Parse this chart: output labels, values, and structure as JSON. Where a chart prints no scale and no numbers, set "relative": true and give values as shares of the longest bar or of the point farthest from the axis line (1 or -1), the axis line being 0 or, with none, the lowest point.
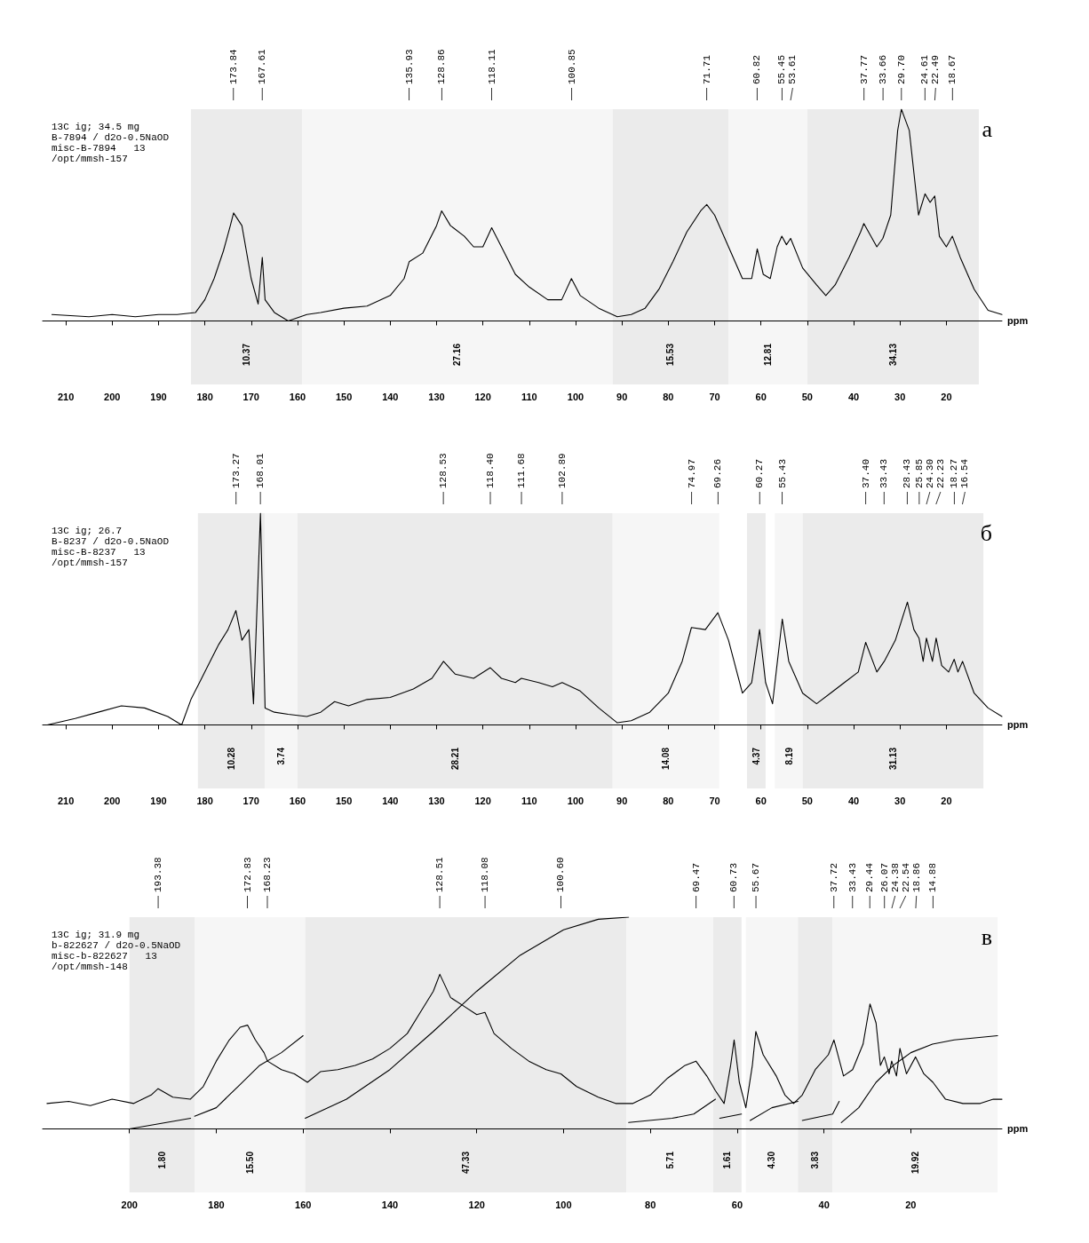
{
  "chart_data": [
    {
      "type": "line",
      "relative": true,
      "title": "а",
      "xlabel": "ppm",
      "xlim": [
        215,
        8
      ],
      "xticks": [
        210,
        200,
        190,
        180,
        170,
        160,
        150,
        140,
        130,
        120,
        110,
        100,
        90,
        80,
        70,
        60,
        50,
        40,
        30,
        20
      ],
      "annotations": [
        "13C ig; 34.5 mg",
        "B-7894 / d2o-0.5NaOD",
        "misc-B-7894   13",
        "/opt/mmsh-157",
        {
          "text": "173.84",
          "x": 173.84
        },
        {
          "text": "167.61",
          "x": 167.61
        },
        {
          "text": "135.93",
          "x": 135.93
        },
        {
          "text": "128.86",
          "x": 128.86
        },
        {
          "text": "118.11",
          "x": 118.11
        },
        {
          "text": "100.85",
          "x": 100.85
        },
        {
          "text": "71.71",
          "x": 71.71
        },
        {
          "text": "60.82",
          "x": 60.82
        },
        {
          "text": "55.45",
          "x": 55.45
        },
        {
          "text": "53.61",
          "x": 53.61
        },
        {
          "text": "37.77",
          "x": 37.77
        },
        {
          "text": "33.66",
          "x": 33.66
        },
        {
          "text": "29.70",
          "x": 29.7
        },
        {
          "text": "24.61",
          "x": 24.61
        },
        {
          "text": "22.49",
          "x": 22.49
        },
        {
          "text": "18.67",
          "x": 18.67
        }
      ],
      "bands": [
        {
          "axis": "x",
          "from": 183,
          "to": 159,
          "label": "10.37"
        },
        {
          "axis": "x",
          "from": 159,
          "to": 92,
          "label": "27.16"
        },
        {
          "axis": "x",
          "from": 92,
          "to": 67,
          "label": "15.53"
        },
        {
          "axis": "x",
          "from": 67,
          "to": 50,
          "label": "12.81"
        },
        {
          "axis": "x",
          "from": 50,
          "to": 13,
          "label": "34.13"
        }
      ],
      "series": [
        {
          "color": "#000000",
          "x": [
            213,
            205,
            200,
            195,
            190,
            186,
            182,
            180,
            178,
            176,
            174.5,
            173.8,
            172,
            170,
            168.5,
            167.6,
            167,
            165,
            162,
            158,
            155,
            150,
            145,
            140,
            137,
            135.9,
            133,
            130,
            128.9,
            127,
            124,
            122,
            120,
            118.1,
            116,
            113,
            110,
            106,
            103,
            100.9,
            99,
            95,
            91,
            88,
            85,
            82,
            79,
            76,
            73,
            71.7,
            70,
            67,
            64,
            62,
            60.8,
            59.5,
            58,
            56.5,
            55.5,
            54.5,
            53.6,
            51,
            48,
            46,
            44,
            41,
            38.5,
            37.8,
            35,
            33.7,
            32,
            30.5,
            29.7,
            28,
            26,
            24.6,
            23.5,
            22.5,
            21.5,
            20,
            18.7,
            17,
            14,
            11,
            8
          ],
          "values": [
            0.03,
            0.02,
            0.03,
            0.02,
            0.03,
            0.03,
            0.04,
            0.1,
            0.2,
            0.33,
            0.45,
            0.51,
            0.45,
            0.2,
            0.08,
            0.3,
            0.1,
            0.04,
            0.0,
            0.03,
            0.04,
            0.06,
            0.07,
            0.12,
            0.2,
            0.28,
            0.32,
            0.45,
            0.52,
            0.45,
            0.4,
            0.35,
            0.35,
            0.44,
            0.35,
            0.22,
            0.16,
            0.1,
            0.1,
            0.2,
            0.12,
            0.06,
            0.02,
            0.03,
            0.06,
            0.15,
            0.28,
            0.42,
            0.52,
            0.55,
            0.5,
            0.35,
            0.2,
            0.2,
            0.34,
            0.22,
            0.2,
            0.35,
            0.4,
            0.36,
            0.39,
            0.25,
            0.17,
            0.12,
            0.17,
            0.3,
            0.42,
            0.46,
            0.35,
            0.39,
            0.5,
            0.9,
            1.0,
            0.9,
            0.5,
            0.6,
            0.56,
            0.59,
            0.4,
            0.35,
            0.4,
            0.3,
            0.15,
            0.05,
            0.03
          ]
        }
      ]
    },
    {
      "type": "line",
      "relative": true,
      "title": "б",
      "xlabel": "ppm",
      "xlim": [
        215,
        8
      ],
      "xticks": [
        210,
        200,
        190,
        180,
        170,
        160,
        150,
        140,
        130,
        120,
        110,
        100,
        90,
        80,
        70,
        60,
        50,
        40,
        30,
        20
      ],
      "annotations": [
        "13C ig; 26.7",
        "B-8237 / d2o-0.5NaOD",
        "misc-B-8237   13",
        "/opt/mmsh-157",
        {
          "text": "173.27",
          "x": 173.27
        },
        {
          "text": "168.01",
          "x": 168.01
        },
        {
          "text": "128.53",
          "x": 128.53
        },
        {
          "text": "118.40",
          "x": 118.4
        },
        {
          "text": "111.68",
          "x": 111.68
        },
        {
          "text": "102.89",
          "x": 102.89
        },
        {
          "text": "74.97",
          "x": 74.97
        },
        {
          "text": "69.26",
          "x": 69.26
        },
        {
          "text": "60.27",
          "x": 60.27
        },
        {
          "text": "55.43",
          "x": 55.43
        },
        {
          "text": "37.40",
          "x": 37.4
        },
        {
          "text": "33.43",
          "x": 33.43
        },
        {
          "text": "28.43",
          "x": 28.43
        },
        {
          "text": "25.85",
          "x": 25.85
        },
        {
          "text": "24.30",
          "x": 24.3
        },
        {
          "text": "22.23",
          "x": 22.23
        },
        {
          "text": "18.27",
          "x": 18.27
        },
        {
          "text": "16.54",
          "x": 16.54
        }
      ],
      "bands": [
        {
          "axis": "x",
          "from": 181.5,
          "to": 167,
          "label": "10.28"
        },
        {
          "axis": "x",
          "from": 167,
          "to": 160,
          "label": "3.74"
        },
        {
          "axis": "x",
          "from": 160,
          "to": 92,
          "label": "28.21"
        },
        {
          "axis": "x",
          "from": 92,
          "to": 69,
          "label": "14.08"
        },
        {
          "axis": "x",
          "from": 63,
          "to": 59,
          "label": "4.37"
        },
        {
          "axis": "x",
          "from": 57,
          "to": 51,
          "label": "8.19"
        },
        {
          "axis": "x",
          "from": 51,
          "to": 12,
          "label": "31.13"
        }
      ],
      "series": [
        {
          "color": "#000000",
          "x": [
            214,
            208,
            203,
            198,
            193,
            188,
            185,
            183,
            180,
            177,
            175,
            173.3,
            172,
            170.5,
            169.5,
            168,
            167,
            165,
            162,
            158,
            155,
            152,
            149,
            145,
            140,
            135,
            131,
            128.5,
            126,
            122,
            118.4,
            116,
            113,
            111.7,
            108,
            105,
            102.9,
            99,
            95,
            91,
            88,
            84,
            80,
            77,
            75,
            72,
            69.3,
            67,
            64,
            62,
            60.3,
            59,
            57.5,
            55.4,
            54,
            51,
            48,
            45,
            42,
            39,
            37.4,
            35,
            33.4,
            31,
            28.4,
            27,
            25.9,
            25,
            24.3,
            23,
            22.2,
            21,
            19.5,
            18.3,
            17.5,
            16.5,
            14,
            11,
            8
          ],
          "values": [
            0.0,
            0.03,
            0.06,
            0.09,
            0.08,
            0.04,
            0.0,
            0.12,
            0.25,
            0.38,
            0.45,
            0.54,
            0.4,
            0.45,
            0.1,
            1.0,
            0.08,
            0.06,
            0.05,
            0.04,
            0.06,
            0.11,
            0.09,
            0.12,
            0.13,
            0.17,
            0.22,
            0.3,
            0.24,
            0.22,
            0.27,
            0.22,
            0.2,
            0.22,
            0.2,
            0.18,
            0.2,
            0.16,
            0.08,
            0.01,
            0.02,
            0.06,
            0.15,
            0.3,
            0.46,
            0.45,
            0.53,
            0.4,
            0.15,
            0.2,
            0.45,
            0.2,
            0.1,
            0.5,
            0.3,
            0.15,
            0.1,
            0.15,
            0.2,
            0.25,
            0.39,
            0.25,
            0.3,
            0.4,
            0.58,
            0.45,
            0.41,
            0.3,
            0.41,
            0.3,
            0.41,
            0.28,
            0.25,
            0.31,
            0.25,
            0.3,
            0.15,
            0.08,
            0.04
          ]
        }
      ]
    },
    {
      "type": "line",
      "relative": true,
      "title": "в",
      "xlabel": "ppm",
      "xlim": [
        220,
        -1
      ],
      "xticks": [
        200,
        180,
        160,
        140,
        120,
        100,
        80,
        60,
        40,
        20
      ],
      "annotations": [
        "13C ig; 31.9 mg",
        "b-822627 / d2o-0.5NaOD",
        "misc-b-822627   13",
        "/opt/mmsh-148",
        {
          "text": "193.38",
          "x": 193.38
        },
        {
          "text": "172.83",
          "x": 172.83
        },
        {
          "text": "168.23",
          "x": 168.23
        },
        {
          "text": "128.51",
          "x": 128.51
        },
        {
          "text": "118.08",
          "x": 118.08
        },
        {
          "text": "100.60",
          "x": 100.6
        },
        {
          "text": "69.47",
          "x": 69.47
        },
        {
          "text": "60.73",
          "x": 60.73
        },
        {
          "text": "55.67",
          "x": 55.67
        },
        {
          "text": "37.72",
          "x": 37.72
        },
        {
          "text": "33.43",
          "x": 33.43
        },
        {
          "text": "29.44",
          "x": 29.44
        },
        {
          "text": "26.07",
          "x": 26.07
        },
        {
          "text": "24.38",
          "x": 24.38
        },
        {
          "text": "22.54",
          "x": 22.54
        },
        {
          "text": "18.86",
          "x": 18.86
        },
        {
          "text": "14.88",
          "x": 14.88
        }
      ],
      "bands": [
        {
          "axis": "x",
          "from": 200,
          "to": 185,
          "label": "1.80"
        },
        {
          "axis": "x",
          "from": 185,
          "to": 159.5,
          "label": "15.50"
        },
        {
          "axis": "x",
          "from": 159.5,
          "to": 85.5,
          "label": "47.33"
        },
        {
          "axis": "x",
          "from": 85.5,
          "to": 65.5,
          "label": "5.71"
        },
        {
          "axis": "x",
          "from": 65.5,
          "to": 59,
          "label": "1.61"
        },
        {
          "axis": "x",
          "from": 58,
          "to": 46,
          "label": "4.30"
        },
        {
          "axis": "x",
          "from": 46,
          "to": 38,
          "label": "3.83"
        },
        {
          "axis": "x",
          "from": 38,
          "to": 0,
          "label": "19.92"
        }
      ],
      "series": [
        {
          "color": "#000000",
          "x": [
            219,
            214,
            209,
            204,
            199,
            195,
            193.4,
            190,
            186,
            183,
            180,
            177,
            174.5,
            172.8,
            171,
            169,
            168.2,
            165,
            162,
            159,
            156,
            152,
            148,
            144,
            140,
            136,
            133,
            130,
            128.5,
            126,
            123,
            120,
            118.1,
            116,
            112,
            108,
            104,
            100.6,
            97,
            92,
            88,
            84,
            80,
            76,
            72,
            69.5,
            67,
            65,
            63,
            61.5,
            60.7,
            59.5,
            58,
            56.5,
            55.7,
            54,
            51,
            49,
            47,
            45,
            42,
            39,
            37.7,
            35.5,
            33.4,
            31,
            29.4,
            28,
            27,
            26.1,
            25,
            24.4,
            23.3,
            22.5,
            21,
            18.9,
            17,
            14.9,
            12,
            8,
            4,
            1,
            -1
          ],
          "values": [
            0.12,
            0.13,
            0.11,
            0.14,
            0.12,
            0.16,
            0.19,
            0.15,
            0.14,
            0.2,
            0.32,
            0.42,
            0.48,
            0.49,
            0.42,
            0.36,
            0.32,
            0.28,
            0.26,
            0.22,
            0.27,
            0.28,
            0.3,
            0.33,
            0.38,
            0.45,
            0.55,
            0.65,
            0.73,
            0.62,
            0.58,
            0.54,
            0.55,
            0.45,
            0.38,
            0.32,
            0.28,
            0.26,
            0.2,
            0.15,
            0.12,
            0.12,
            0.16,
            0.24,
            0.3,
            0.32,
            0.25,
            0.18,
            0.12,
            0.3,
            0.42,
            0.22,
            0.1,
            0.3,
            0.46,
            0.35,
            0.25,
            0.16,
            0.12,
            0.16,
            0.28,
            0.35,
            0.42,
            0.25,
            0.28,
            0.4,
            0.59,
            0.5,
            0.3,
            0.34,
            0.26,
            0.32,
            0.25,
            0.38,
            0.26,
            0.34,
            0.26,
            0.22,
            0.14,
            0.12,
            0.12,
            0.14,
            0.14
          ]
        },
        {
          "color": "#000000",
          "x": [
            200,
            185.9
          ],
          "values": [
            0.0,
            0.05
          ]
        },
        {
          "color": "#000000",
          "x": [
            185,
            180,
            175,
            170,
            165,
            160
          ],
          "values": [
            0.06,
            0.1,
            0.2,
            0.3,
            0.36,
            0.44
          ]
        },
        {
          "color": "#000000",
          "x": [
            159.5,
            150,
            140,
            130,
            120,
            110,
            100,
            92,
            85
          ],
          "values": [
            0.05,
            0.14,
            0.28,
            0.46,
            0.65,
            0.82,
            0.94,
            0.99,
            1.0
          ]
        },
        {
          "color": "#000000",
          "x": [
            85,
            75,
            70,
            65
          ],
          "values": [
            0.03,
            0.05,
            0.07,
            0.14
          ]
        },
        {
          "color": "#000000",
          "x": [
            64,
            59
          ],
          "values": [
            0.05,
            0.07
          ]
        },
        {
          "color": "#000000",
          "x": [
            57,
            52,
            46
          ],
          "values": [
            0.04,
            0.1,
            0.13
          ]
        },
        {
          "color": "#000000",
          "x": [
            45,
            38,
            36.5
          ],
          "values": [
            0.04,
            0.07,
            0.13
          ]
        },
        {
          "color": "#000000",
          "x": [
            36,
            32,
            28,
            24,
            20,
            15,
            10,
            0
          ],
          "values": [
            0.03,
            0.1,
            0.22,
            0.3,
            0.36,
            0.4,
            0.42,
            0.44
          ]
        }
      ]
    }
  ]
}
